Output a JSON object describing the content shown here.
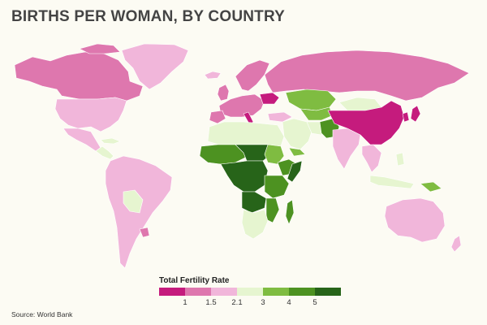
{
  "title": "BIRTHS PER WOMAN, BY COUNTRY",
  "legend": {
    "title": "Total Fertility Rate",
    "bins": [
      {
        "color": "#c51b7d"
      },
      {
        "color": "#de77ae"
      },
      {
        "color": "#f1b6da"
      },
      {
        "color": "#e6f5d0"
      },
      {
        "color": "#7fbc41"
      },
      {
        "color": "#4d9221"
      },
      {
        "color": "#276419"
      }
    ],
    "ticks": [
      "1",
      "1.5",
      "2.1",
      "3",
      "4",
      "5"
    ]
  },
  "source": "Source: World Bank",
  "colors": {
    "background": "#fcfbf3",
    "border": "#ffffff"
  }
}
